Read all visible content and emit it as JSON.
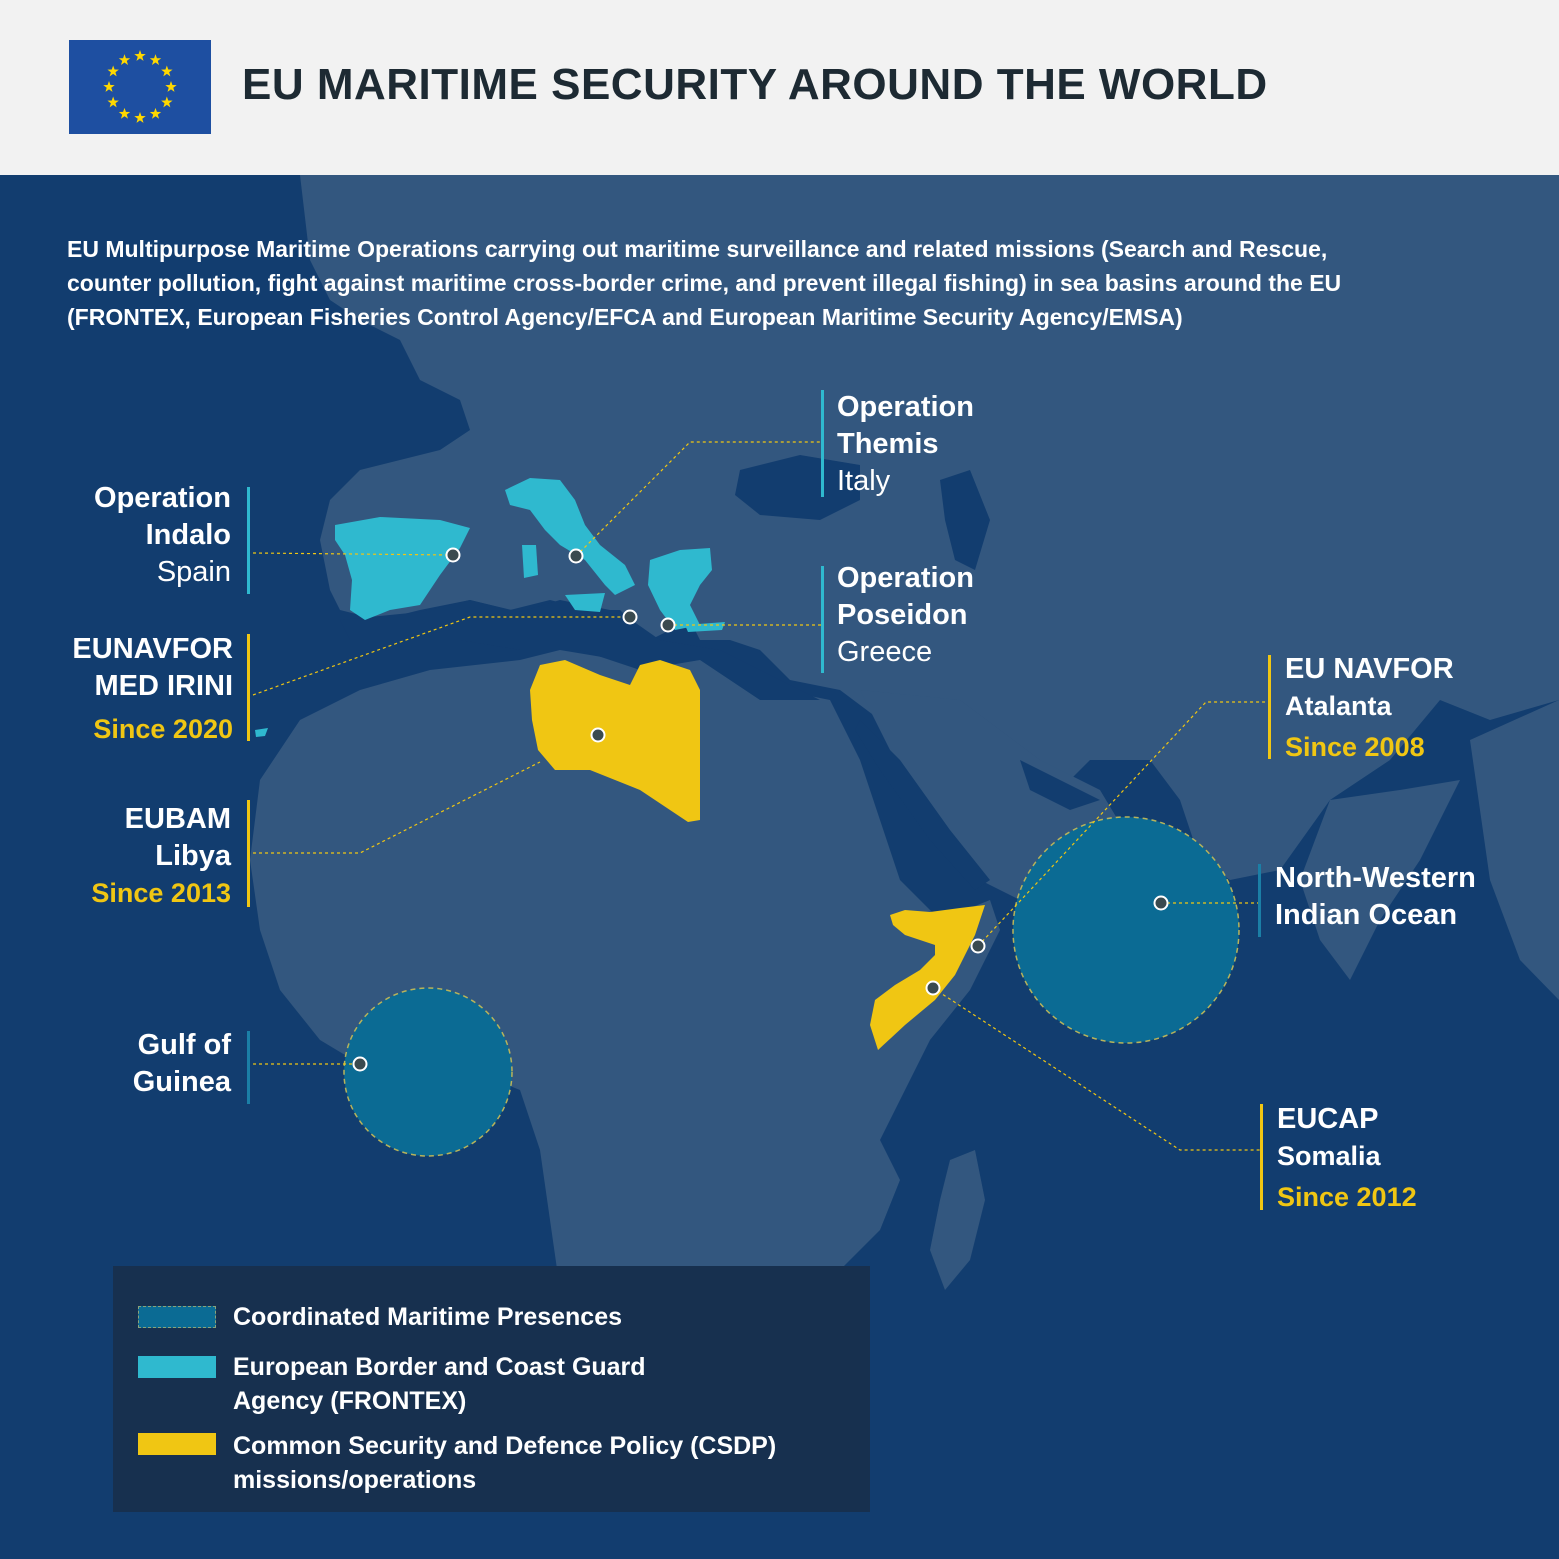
{
  "header": {
    "title": "EU MARITIME SECURITY AROUND THE WORLD",
    "flag_icon": "eu-flag-icon"
  },
  "intro": "EU Multipurpose Maritime Operations carrying out maritime surveillance and related missions (Search and Rescue, counter pollution, fight against maritime cross-border crime, and prevent illegal fishing) in sea basins around the EU (FRONTEX, European Fisheries Control Agency/EFCA and European Maritime Security Agency/EMSA)",
  "operations": {
    "indalo": {
      "line1": "Operation",
      "line2": "Indalo",
      "country": "Spain"
    },
    "themis": {
      "line1": "Operation",
      "line2": "Themis",
      "country": "Italy"
    },
    "poseidon": {
      "line1": "Operation",
      "line2": "Poseidon",
      "country": "Greece"
    },
    "irini": {
      "line1": "EUNAVFOR",
      "line2": "MED IRINI",
      "since": "Since 2020"
    },
    "eubam": {
      "line1": "EUBAM",
      "line2": "Libya",
      "since": "Since 2013"
    },
    "guinea": {
      "line1": "Gulf of",
      "line2": "Guinea"
    },
    "atalanta": {
      "line1": "EU NAVFOR",
      "line2": "Atalanta",
      "since": "Since 2008"
    },
    "nwio": {
      "line1": "North-Western",
      "line2": "Indian Ocean"
    },
    "eucap": {
      "line1": "EUCAP",
      "line2": "Somalia",
      "since": "Since 2012"
    }
  },
  "legend": {
    "cmp": "Coordinated Maritime Presences",
    "frontex_1": "European Border and Coast Guard",
    "frontex_2": "Agency (FRONTEX)",
    "csdp_1": "Common Security and Defence Policy (CSDP)",
    "csdp_2": "missions/operations"
  },
  "colors": {
    "ocean": "#123d6f",
    "land": "#33577f",
    "frontex": "#2fb9cf",
    "csdp": "#f0c613",
    "cmp": "#0b6b94",
    "header_bg": "#f2f2f2"
  }
}
